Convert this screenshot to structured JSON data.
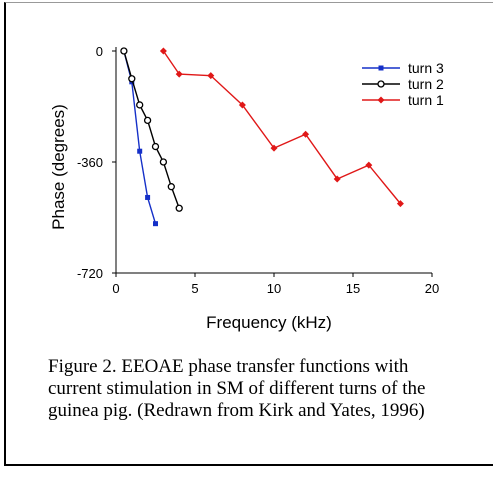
{
  "chart_data": {
    "type": "line",
    "xlabel": "Frequency (kHz)",
    "ylabel": "Phase (degrees)",
    "xlim": [
      0,
      20
    ],
    "ylim": [
      -720,
      0
    ],
    "xticks": [
      0,
      5,
      10,
      15,
      20
    ],
    "yticks": [
      0,
      -360,
      -720
    ],
    "ytick_labels": [
      "0",
      "-360",
      "-720"
    ],
    "legend_position": "top-right",
    "grid": false,
    "series": [
      {
        "name": "turn 3",
        "color": "#1530c8",
        "marker": "square",
        "x": [
          0.5,
          1.0,
          1.5,
          2.0,
          2.5
        ],
        "y": [
          0,
          -100,
          -325,
          -475,
          -560
        ]
      },
      {
        "name": "turn 2",
        "color": "#000000",
        "marker": "circle-open",
        "x": [
          0.5,
          1.0,
          1.5,
          2.0,
          2.5,
          3.0,
          3.5,
          4.0
        ],
        "y": [
          0,
          -90,
          -175,
          -225,
          -310,
          -360,
          -440,
          -510
        ]
      },
      {
        "name": "turn 1",
        "color": "#e01818",
        "marker": "diamond",
        "x": [
          3,
          4,
          6,
          8,
          10,
          12,
          14,
          16,
          18
        ],
        "y": [
          0,
          -75,
          -80,
          -175,
          -315,
          -270,
          -415,
          -370,
          -495
        ]
      }
    ]
  },
  "caption": {
    "line1": "Figure 2. EEOAE phase transfer functions with",
    "line2": "current stimulation in SM of different turns of the",
    "line3": "guinea pig. (Redrawn from Kirk and Yates, 1996)"
  }
}
